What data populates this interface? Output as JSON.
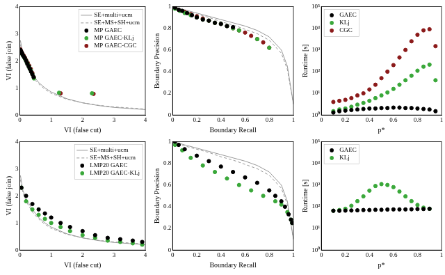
{
  "chart_data": [
    {
      "type": "scatter",
      "x_label": "VI (false cut)",
      "y_label": "VI (false join)",
      "xlim": [
        0,
        4
      ],
      "ylim": [
        0,
        4
      ],
      "xticks": [
        0,
        1,
        2,
        3,
        4
      ],
      "yticks": [
        0,
        1,
        2,
        3,
        4
      ],
      "grid": false,
      "legend": "top-right",
      "series": [
        {
          "name": "SE+multi+ucm",
          "color": "#999999",
          "type": "line",
          "line_style": "solid",
          "x": [
            0.02,
            0.1,
            0.2,
            0.4,
            0.6,
            0.8,
            1.0,
            1.5,
            2.0,
            2.5,
            3.0,
            3.5,
            4.0
          ],
          "values": [
            2.75,
            2.2,
            1.9,
            1.5,
            1.2,
            1.0,
            0.85,
            0.6,
            0.45,
            0.35,
            0.28,
            0.24,
            0.2
          ]
        },
        {
          "name": "SE+MS+SH+ucm",
          "color": "#999999",
          "type": "line",
          "line_style": "dashed",
          "x": [
            0.02,
            0.1,
            0.2,
            0.4,
            0.6,
            0.8,
            1.0,
            1.5,
            2.0,
            2.5,
            3.0,
            3.5,
            4.0
          ],
          "values": [
            2.6,
            2.1,
            1.8,
            1.4,
            1.15,
            0.95,
            0.8,
            0.58,
            0.45,
            0.36,
            0.3,
            0.26,
            0.22
          ]
        },
        {
          "name": "MP GAEC",
          "color": "#000000",
          "type": "scatter",
          "marker": "circle",
          "x": [
            0.02,
            0.04,
            0.06,
            0.08,
            0.1,
            0.13,
            0.16,
            0.2,
            0.24,
            0.28,
            0.32,
            0.36,
            0.4,
            0.44
          ],
          "values": [
            2.4,
            2.35,
            2.3,
            2.25,
            2.2,
            2.15,
            2.1,
            2.0,
            1.9,
            1.8,
            1.7,
            1.6,
            1.5,
            1.4
          ]
        },
        {
          "name": "MP GAEC-KLj",
          "color": "#3aa83a",
          "type": "scatter",
          "marker": "circle",
          "x": [
            0.02,
            0.04,
            0.07,
            0.1,
            0.14,
            0.18,
            0.22,
            0.26,
            0.3,
            0.35,
            0.4,
            0.45,
            1.25,
            2.3
          ],
          "values": [
            2.38,
            2.32,
            2.26,
            2.2,
            2.12,
            2.04,
            1.95,
            1.86,
            1.76,
            1.65,
            1.5,
            1.35,
            0.82,
            0.8
          ]
        },
        {
          "name": "MP GAEC-CGC",
          "color": "#8b1a1a",
          "type": "scatter",
          "marker": "circle",
          "x": [
            0.02,
            0.05,
            0.08,
            0.12,
            0.16,
            0.2,
            0.25,
            0.3,
            0.35,
            0.4,
            0.45,
            1.3,
            2.35
          ],
          "values": [
            2.42,
            2.34,
            2.27,
            2.2,
            2.12,
            2.03,
            1.93,
            1.82,
            1.7,
            1.55,
            1.38,
            0.8,
            0.78
          ]
        }
      ]
    },
    {
      "type": "scatter",
      "x_label": "Boundary Recall",
      "y_label": "Boundary Precision",
      "xlim": [
        0,
        1
      ],
      "ylim": [
        0,
        1
      ],
      "xticks": [
        0,
        0.2,
        0.4,
        0.6,
        0.8,
        1
      ],
      "yticks": [
        0,
        0.2,
        0.4,
        0.6,
        0.8,
        1
      ],
      "grid": false,
      "series": [
        {
          "color": "#999999",
          "type": "line",
          "line_style": "solid",
          "x": [
            0,
            0.1,
            0.2,
            0.3,
            0.4,
            0.5,
            0.6,
            0.7,
            0.8,
            0.9,
            0.95,
            1.0
          ],
          "values": [
            1.0,
            0.97,
            0.94,
            0.91,
            0.88,
            0.85,
            0.82,
            0.78,
            0.72,
            0.6,
            0.45,
            0.1
          ]
        },
        {
          "color": "#999999",
          "type": "line",
          "line_style": "dashed",
          "x": [
            0,
            0.1,
            0.2,
            0.3,
            0.4,
            0.5,
            0.6,
            0.7,
            0.8,
            0.9,
            0.95,
            1.0
          ],
          "values": [
            0.99,
            0.96,
            0.93,
            0.9,
            0.86,
            0.83,
            0.79,
            0.75,
            0.69,
            0.57,
            0.42,
            0.1
          ]
        },
        {
          "color": "#000000",
          "type": "scatter",
          "marker": "circle",
          "x": [
            0.02,
            0.05,
            0.08,
            0.12,
            0.16,
            0.2,
            0.25,
            0.3,
            0.35,
            0.4,
            0.45,
            0.5
          ],
          "values": [
            0.99,
            0.97,
            0.96,
            0.94,
            0.92,
            0.9,
            0.88,
            0.87,
            0.85,
            0.84,
            0.82,
            0.81
          ]
        },
        {
          "color": "#3aa83a",
          "type": "scatter",
          "marker": "circle",
          "x": [
            0.02,
            0.06,
            0.1,
            0.15,
            0.2,
            0.25,
            0.3,
            0.35,
            0.4,
            0.45,
            0.5,
            0.55,
            0.7,
            0.8
          ],
          "values": [
            0.98,
            0.96,
            0.94,
            0.92,
            0.9,
            0.88,
            0.87,
            0.85,
            0.84,
            0.82,
            0.8,
            0.78,
            0.7,
            0.62
          ]
        },
        {
          "color": "#8b1a1a",
          "type": "scatter",
          "marker": "circle",
          "x": [
            0.02,
            0.05,
            0.1,
            0.15,
            0.2,
            0.25,
            0.3,
            0.35,
            0.4,
            0.45,
            0.5,
            0.55,
            0.6,
            0.65,
            0.7,
            0.75,
            0.8
          ],
          "values": [
            0.99,
            0.97,
            0.95,
            0.93,
            0.91,
            0.89,
            0.87,
            0.85,
            0.84,
            0.82,
            0.8,
            0.78,
            0.76,
            0.73,
            0.7,
            0.67,
            0.62
          ]
        }
      ]
    },
    {
      "type": "scatter",
      "x_label": "p*",
      "y_label": "Runtime [s]",
      "log": "y",
      "xlim": [
        0,
        1
      ],
      "ylim": [
        1,
        100000
      ],
      "xticks": [
        0,
        0.2,
        0.4,
        0.6,
        0.8,
        1
      ],
      "yticks": [
        {
          "value": 1,
          "label": "10⁰"
        },
        {
          "value": 10,
          "label": "10¹"
        },
        {
          "value": 100,
          "label": "10²"
        },
        {
          "value": 1000,
          "label": "10³"
        },
        {
          "value": 10000,
          "label": "10⁴"
        },
        {
          "value": 100000,
          "label": "10⁵"
        }
      ],
      "grid": false,
      "legend": "top-left",
      "series": [
        {
          "name": "GAEC",
          "color": "#000000",
          "type": "scatter",
          "marker": "circle",
          "x": [
            0.1,
            0.15,
            0.2,
            0.25,
            0.3,
            0.35,
            0.4,
            0.45,
            0.5,
            0.55,
            0.6,
            0.65,
            0.7,
            0.75,
            0.8,
            0.85,
            0.9,
            0.95
          ],
          "values": [
            1.3,
            1.5,
            1.6,
            1.7,
            1.8,
            1.9,
            2,
            2,
            2.1,
            2.1,
            2.2,
            2.2,
            2.1,
            2.1,
            2,
            1.9,
            1.8,
            1.5
          ]
        },
        {
          "name": "KLj",
          "color": "#3aa83a",
          "type": "scatter",
          "marker": "circle",
          "x": [
            0.1,
            0.15,
            0.2,
            0.25,
            0.3,
            0.35,
            0.4,
            0.45,
            0.5,
            0.55,
            0.6,
            0.65,
            0.7,
            0.75,
            0.8,
            0.85,
            0.9,
            0.95
          ],
          "values": [
            1.5,
            1.8,
            2,
            2.4,
            3,
            3.6,
            4.5,
            6,
            8,
            11,
            16,
            25,
            40,
            65,
            110,
            170,
            210,
            40
          ]
        },
        {
          "name": "CGC",
          "color": "#8b1a1a",
          "type": "scatter",
          "marker": "circle",
          "x": [
            0.1,
            0.15,
            0.2,
            0.25,
            0.3,
            0.35,
            0.4,
            0.45,
            0.5,
            0.55,
            0.6,
            0.65,
            0.7,
            0.75,
            0.8,
            0.85,
            0.9,
            0.95
          ],
          "values": [
            4,
            4.5,
            5,
            6,
            8,
            10,
            15,
            25,
            50,
            100,
            200,
            450,
            1000,
            2500,
            5000,
            8000,
            9000,
            1500
          ]
        }
      ]
    },
    {
      "type": "scatter",
      "x_label": "VI (false cut)",
      "y_label": "VI (false join)",
      "xlim": [
        0,
        4
      ],
      "ylim": [
        0,
        4
      ],
      "xticks": [
        0,
        1,
        2,
        3,
        4
      ],
      "yticks": [
        0,
        1,
        2,
        3,
        4
      ],
      "grid": false,
      "legend": "top-right",
      "series": [
        {
          "name": "SE+multi+ucm",
          "color": "#999999",
          "type": "line",
          "line_style": "solid",
          "x": [
            0.02,
            0.1,
            0.2,
            0.4,
            0.6,
            0.8,
            1.0,
            1.5,
            2.0,
            2.5,
            3.0,
            3.5,
            4.0
          ],
          "values": [
            2.75,
            2.2,
            1.9,
            1.5,
            1.2,
            1.0,
            0.85,
            0.6,
            0.45,
            0.35,
            0.28,
            0.24,
            0.2
          ]
        },
        {
          "name": "SE+MS+SH+ucm",
          "color": "#999999",
          "type": "line",
          "line_style": "dashed",
          "x": [
            0.02,
            0.1,
            0.2,
            0.4,
            0.6,
            0.8,
            1.0,
            1.5,
            2.0,
            2.5,
            3.0,
            3.5,
            4.0
          ],
          "values": [
            2.6,
            2.1,
            1.8,
            1.4,
            1.15,
            0.95,
            0.8,
            0.58,
            0.45,
            0.36,
            0.3,
            0.26,
            0.22
          ]
        },
        {
          "name": "LMP20 GAEC",
          "color": "#000000",
          "type": "scatter",
          "marker": "circle",
          "x": [
            0.05,
            0.2,
            0.4,
            0.6,
            0.8,
            1.0,
            1.3,
            1.6,
            2.0,
            2.4,
            2.8,
            3.2,
            3.6,
            3.9
          ],
          "values": [
            2.3,
            2.0,
            1.7,
            1.5,
            1.35,
            1.2,
            1.0,
            0.85,
            0.7,
            0.55,
            0.45,
            0.4,
            0.35,
            0.3
          ]
        },
        {
          "name": "LMP20 GAEC-KLj",
          "color": "#3aa83a",
          "type": "scatter",
          "marker": "circle",
          "x": [
            0.05,
            0.2,
            0.4,
            0.6,
            0.8,
            1.0,
            1.3,
            1.6,
            2.0,
            2.4,
            2.8,
            3.2,
            3.6,
            3.9
          ],
          "values": [
            2.3,
            1.8,
            1.5,
            1.3,
            1.15,
            1.0,
            0.85,
            0.7,
            0.55,
            0.45,
            0.35,
            0.3,
            0.25,
            0.2
          ]
        }
      ]
    },
    {
      "type": "scatter",
      "x_label": "Boundary Recall",
      "y_label": "Boundary Precision",
      "xlim": [
        0,
        1
      ],
      "ylim": [
        0,
        1
      ],
      "xticks": [
        0,
        0.2,
        0.4,
        0.6,
        0.8,
        1
      ],
      "yticks": [
        0,
        0.2,
        0.4,
        0.6,
        0.8,
        1
      ],
      "grid": false,
      "series": [
        {
          "color": "#999999",
          "type": "line",
          "line_style": "solid",
          "x": [
            0,
            0.1,
            0.2,
            0.3,
            0.4,
            0.5,
            0.6,
            0.7,
            0.8,
            0.9,
            0.95,
            1.0
          ],
          "values": [
            1.0,
            0.97,
            0.94,
            0.91,
            0.88,
            0.85,
            0.82,
            0.78,
            0.72,
            0.6,
            0.45,
            0.1
          ]
        },
        {
          "color": "#999999",
          "type": "line",
          "line_style": "dashed",
          "x": [
            0,
            0.1,
            0.2,
            0.3,
            0.4,
            0.5,
            0.6,
            0.7,
            0.8,
            0.9,
            0.95,
            1.0
          ],
          "values": [
            0.99,
            0.96,
            0.93,
            0.9,
            0.86,
            0.83,
            0.79,
            0.75,
            0.69,
            0.57,
            0.42,
            0.1
          ]
        },
        {
          "color": "#000000",
          "type": "scatter",
          "marker": "circle",
          "x": [
            0.02,
            0.05,
            0.1,
            0.2,
            0.3,
            0.4,
            0.5,
            0.6,
            0.7,
            0.8,
            0.85,
            0.9,
            0.93,
            0.96,
            0.98,
            0.99
          ],
          "values": [
            1.0,
            0.97,
            0.93,
            0.87,
            0.82,
            0.77,
            0.72,
            0.67,
            0.62,
            0.55,
            0.5,
            0.45,
            0.4,
            0.33,
            0.28,
            0.25
          ]
        },
        {
          "color": "#3aa83a",
          "type": "scatter",
          "marker": "circle",
          "x": [
            0.02,
            0.08,
            0.15,
            0.25,
            0.35,
            0.45,
            0.55,
            0.65,
            0.75,
            0.85,
            0.9,
            0.95,
            0.98,
            0.99
          ],
          "values": [
            0.97,
            0.92,
            0.85,
            0.78,
            0.72,
            0.66,
            0.6,
            0.55,
            0.5,
            0.45,
            0.42,
            0.35,
            0.28,
            0.25
          ]
        }
      ]
    },
    {
      "type": "scatter",
      "x_label": "p*",
      "y_label": "Runtime [s]",
      "log": "y",
      "xlim": [
        0,
        1
      ],
      "ylim": [
        1,
        100000
      ],
      "xticks": [
        0,
        0.2,
        0.4,
        0.6,
        0.8,
        1
      ],
      "yticks": [
        {
          "value": 1,
          "label": "10⁰"
        },
        {
          "value": 10,
          "label": "10¹"
        },
        {
          "value": 100,
          "label": "10²"
        },
        {
          "value": 1000,
          "label": "10³"
        },
        {
          "value": 10000,
          "label": "10⁴"
        },
        {
          "value": 100000,
          "label": "10⁵"
        }
      ],
      "grid": false,
      "legend": "top-left",
      "series": [
        {
          "name": "GAEC",
          "color": "#000000",
          "type": "scatter",
          "marker": "circle",
          "x": [
            0.1,
            0.15,
            0.2,
            0.25,
            0.3,
            0.35,
            0.4,
            0.45,
            0.5,
            0.55,
            0.6,
            0.65,
            0.7,
            0.75,
            0.8,
            0.85,
            0.9
          ],
          "values": [
            65,
            65,
            66,
            67,
            68,
            70,
            70,
            72,
            72,
            74,
            75,
            75,
            75,
            76,
            78,
            78,
            80
          ]
        },
        {
          "name": "KLj",
          "color": "#3aa83a",
          "type": "scatter",
          "marker": "circle",
          "x": [
            0.1,
            0.15,
            0.2,
            0.25,
            0.3,
            0.35,
            0.4,
            0.45,
            0.5,
            0.55,
            0.6,
            0.65,
            0.7,
            0.75,
            0.8,
            0.85,
            0.9
          ],
          "values": [
            65,
            70,
            80,
            110,
            180,
            300,
            550,
            900,
            1100,
            1000,
            800,
            500,
            300,
            180,
            120,
            90,
            80
          ]
        }
      ]
    }
  ]
}
